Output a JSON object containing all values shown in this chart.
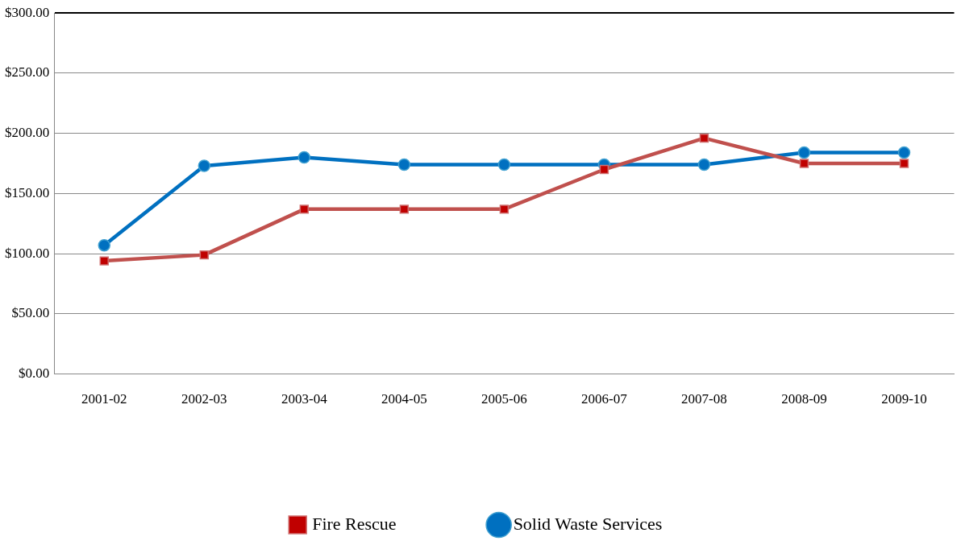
{
  "chart_data": {
    "type": "line",
    "categories": [
      "2001-02",
      "2002-03",
      "2003-04",
      "2004-05",
      "2005-06",
      "2006-07",
      "2007-08",
      "2008-09",
      "2009-10"
    ],
    "series": [
      {
        "name": "Fire Rescue",
        "color": "#c0504d",
        "marker": "square",
        "values": [
          94,
          99,
          137,
          137,
          137,
          170,
          196,
          175,
          175
        ]
      },
      {
        "name": "Solid Waste Services",
        "color": "#0070c0",
        "marker": "circle",
        "values": [
          107,
          173,
          180,
          174,
          174,
          174,
          174,
          184,
          184
        ]
      }
    ],
    "ylim": [
      0,
      300
    ],
    "yticks": [
      {
        "value": 0,
        "label": "$0.00"
      },
      {
        "value": 50,
        "label": "$50.00"
      },
      {
        "value": 100,
        "label": "$100.00"
      },
      {
        "value": 150,
        "label": "$150.00"
      },
      {
        "value": 200,
        "label": "$200.00"
      },
      {
        "value": 250,
        "label": "$250.00"
      },
      {
        "value": 300,
        "label": "$300.00"
      }
    ],
    "grid": "y",
    "legend": "bottom"
  }
}
